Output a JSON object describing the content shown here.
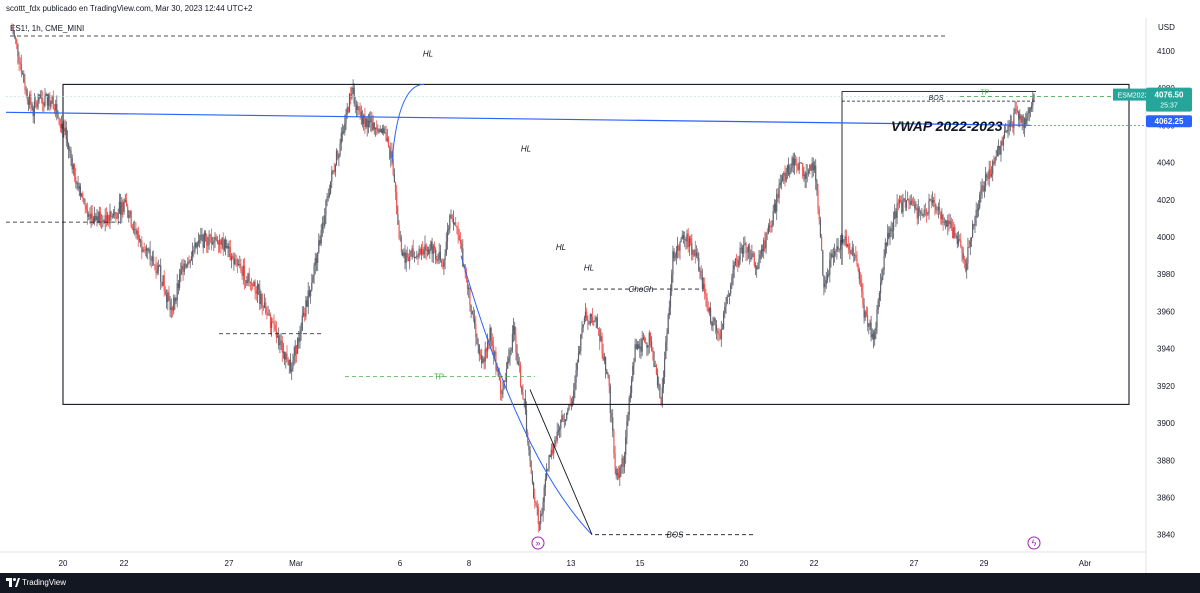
{
  "header": {
    "publish_line": "scottt_fdx publicado en TradingView.com, Mar 30, 2023 12:44 UTC+2"
  },
  "footer": {
    "brand": "TradingView"
  },
  "chart_data": {
    "type": "candlestick",
    "symbol_line": "ES1!, 1h, CME_MINI",
    "currency": "USD",
    "ylim": [
      3835,
      4115
    ],
    "y_ticks": [
      4100,
      4080,
      4060,
      4040,
      4020,
      4000,
      3980,
      3960,
      3940,
      3920,
      3900,
      3880,
      3860,
      3840
    ],
    "x_ticks": [
      "20",
      "22",
      "27",
      "Mar",
      "6",
      "8",
      "13",
      "15",
      "20",
      "22",
      "27",
      "29",
      "Abr"
    ],
    "price_tags": [
      {
        "label": "ESM2023",
        "value": "4076.50",
        "sub": "25:37",
        "color": "#26a69a"
      },
      {
        "label": "",
        "value": "4062.25",
        "sub": "",
        "color": "#2962ff"
      }
    ],
    "annotations": {
      "vwap_label": "VWAP 2022-2023",
      "hl_labels": [
        "HL",
        "HL",
        "HL",
        "HL"
      ],
      "tp_label": "TP",
      "choch_label": "ChoCh",
      "bos_label": "BOS",
      "bos_top_label": "BOS",
      "tp_top_label": "TP"
    },
    "levels": {
      "range_high": 4082,
      "range_low": 3910,
      "top_dashed": 4108,
      "mid_left_dashed": 4008,
      "left_low_dashed": 3948,
      "tp_level": 3925,
      "choch_level": 3972,
      "bos_level": 3840,
      "bos_top_level": 4073,
      "tp_top_level": 4075,
      "vwap_start": 4067,
      "vwap_end": 4060
    },
    "colors": {
      "up": "#26a69a",
      "down": "#ef5350",
      "candle": "#5d606b",
      "vwap": "#2962ff",
      "tp": "#4caf50",
      "box": "#131722"
    },
    "candle_anchors": [
      [
        0,
        4112
      ],
      [
        5,
        4100
      ],
      [
        12,
        4078
      ],
      [
        18,
        4068
      ],
      [
        25,
        4075
      ],
      [
        35,
        4073
      ],
      [
        45,
        4055
      ],
      [
        55,
        4030
      ],
      [
        65,
        4012
      ],
      [
        80,
        4008
      ],
      [
        95,
        4018
      ],
      [
        110,
        3995
      ],
      [
        125,
        3982
      ],
      [
        135,
        3960
      ],
      [
        145,
        3985
      ],
      [
        160,
        3998
      ],
      [
        175,
        4000
      ],
      [
        190,
        3985
      ],
      [
        205,
        3975
      ],
      [
        215,
        3960
      ],
      [
        225,
        3945
      ],
      [
        237,
        3930
      ],
      [
        248,
        3960
      ],
      [
        260,
        3995
      ],
      [
        270,
        4030
      ],
      [
        280,
        4055
      ],
      [
        288,
        4080
      ],
      [
        295,
        4065
      ],
      [
        305,
        4060
      ],
      [
        315,
        4058
      ],
      [
        322,
        4040
      ],
      [
        330,
        3990
      ],
      [
        340,
        3990
      ],
      [
        355,
        3995
      ],
      [
        365,
        3985
      ],
      [
        372,
        4015
      ],
      [
        380,
        3995
      ],
      [
        390,
        3960
      ],
      [
        398,
        3930
      ],
      [
        405,
        3950
      ],
      [
        415,
        3915
      ],
      [
        425,
        3950
      ],
      [
        435,
        3905
      ],
      [
        440,
        3870
      ],
      [
        447,
        3845
      ],
      [
        455,
        3880
      ],
      [
        465,
        3900
      ],
      [
        475,
        3912
      ],
      [
        485,
        3958
      ],
      [
        495,
        3955
      ],
      [
        505,
        3925
      ],
      [
        512,
        3870
      ],
      [
        518,
        3880
      ],
      [
        528,
        3940
      ],
      [
        540,
        3945
      ],
      [
        550,
        3910
      ],
      [
        560,
        3990
      ],
      [
        570,
        4000
      ],
      [
        580,
        3990
      ],
      [
        590,
        3960
      ],
      [
        600,
        3945
      ],
      [
        610,
        3980
      ],
      [
        620,
        3995
      ],
      [
        632,
        3985
      ],
      [
        642,
        4005
      ],
      [
        652,
        4030
      ],
      [
        662,
        4040
      ],
      [
        672,
        4035
      ],
      [
        680,
        4040
      ],
      [
        688,
        3975
      ],
      [
        695,
        3990
      ],
      [
        705,
        4000
      ],
      [
        715,
        3990
      ],
      [
        722,
        3960
      ],
      [
        730,
        3945
      ],
      [
        740,
        3995
      ],
      [
        750,
        4015
      ],
      [
        760,
        4020
      ],
      [
        770,
        4010
      ],
      [
        780,
        4020
      ],
      [
        790,
        4010
      ],
      [
        800,
        4000
      ],
      [
        808,
        3985
      ],
      [
        815,
        4010
      ],
      [
        825,
        4030
      ],
      [
        835,
        4045
      ],
      [
        842,
        4055
      ],
      [
        850,
        4065
      ],
      [
        858,
        4062
      ],
      [
        866,
        4078
      ]
    ]
  }
}
